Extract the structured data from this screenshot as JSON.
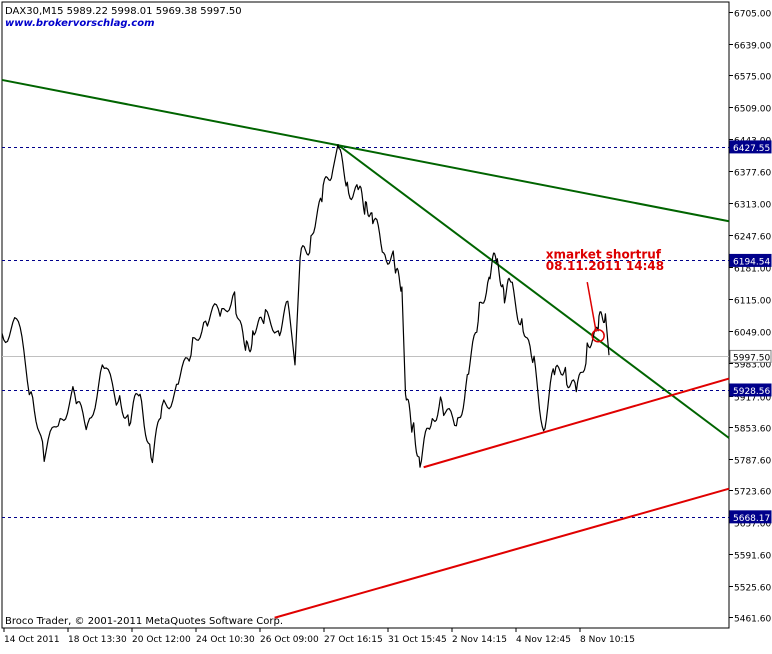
{
  "chart_data": {
    "type": "line",
    "title": "DAX30,M15  5989.22 5998.01 5969.38 5997.50",
    "watermark_link": "www.brokervorschlag.com",
    "footer": "Broco Trader, © 2001-2011 MetaQuotes Software Corp.",
    "annotation": {
      "line1": "xmarket shortruf",
      "line2": "08.11.2011 14:48",
      "color": "#dd0000"
    },
    "y_axis": {
      "side": "right",
      "ylim": [
        5440,
        6725
      ],
      "ticks": [
        6705.0,
        6639.0,
        6575.0,
        6509.0,
        6443.0,
        6377.6,
        6313.0,
        6247.6,
        6181.0,
        6115.0,
        6049.0,
        5983.0,
        5917.0,
        5853.6,
        5787.6,
        5723.6,
        5657.0,
        5591.6,
        5525.6,
        5461.6
      ]
    },
    "x_axis": {
      "tick_labels": [
        "14 Oct 2011",
        "18 Oct 13:30",
        "20 Oct 12:00",
        "24 Oct 10:30",
        "26 Oct 09:00",
        "27 Oct 16:15",
        "31 Oct 15:45",
        "2 Nov 14:15",
        "4 Nov 12:45",
        "8 Nov 10:15"
      ]
    },
    "horizontal_levels": [
      {
        "value": 6427.55,
        "label": "6427.55",
        "style": "dashed",
        "color": "#00008b"
      },
      {
        "value": 6194.54,
        "label": "6194.54",
        "style": "dashed",
        "color": "#00008b"
      },
      {
        "value": 5997.5,
        "label": "5997.50",
        "style": "solid",
        "color": "#c0c0c0"
      },
      {
        "value": 5928.56,
        "label": "5928.56",
        "style": "dashed",
        "color": "#00008b"
      },
      {
        "value": 5668.17,
        "label": "5668.17",
        "style": "dashed",
        "color": "#00008b"
      }
    ],
    "trendlines": [
      {
        "color": "#006400",
        "points": [
          [
            0,
            6565
          ],
          [
            1,
            6275
          ]
        ]
      },
      {
        "color": "#006400",
        "points": [
          [
            0.462,
            6432
          ],
          [
            1,
            5830
          ]
        ]
      },
      {
        "color": "#e00000",
        "points": [
          [
            0.58,
            5770
          ],
          [
            1,
            5952
          ]
        ]
      },
      {
        "color": "#e00000",
        "points": [
          [
            0.375,
            5461
          ],
          [
            1,
            5726
          ]
        ]
      }
    ],
    "series": [
      {
        "color": "#000000",
        "points": [
          [
            0.0,
            6045
          ],
          [
            0.02,
            6075
          ],
          [
            0.04,
            5925
          ],
          [
            0.058,
            5782
          ],
          [
            0.08,
            5870
          ],
          [
            0.1,
            5920
          ],
          [
            0.118,
            5860
          ],
          [
            0.138,
            5980
          ],
          [
            0.16,
            5905
          ],
          [
            0.175,
            5855
          ],
          [
            0.19,
            5920
          ],
          [
            0.205,
            5790
          ],
          [
            0.22,
            5895
          ],
          [
            0.24,
            5940
          ],
          [
            0.26,
            6000
          ],
          [
            0.28,
            6070
          ],
          [
            0.3,
            6080
          ],
          [
            0.32,
            6130
          ],
          [
            0.335,
            6010
          ],
          [
            0.345,
            6050
          ],
          [
            0.36,
            6065
          ],
          [
            0.38,
            6050
          ],
          [
            0.395,
            6090
          ],
          [
            0.403,
            5980
          ],
          [
            0.41,
            6200
          ],
          [
            0.425,
            6245
          ],
          [
            0.44,
            6315
          ],
          [
            0.455,
            6380
          ],
          [
            0.462,
            6432
          ],
          [
            0.475,
            6355
          ],
          [
            0.49,
            6340
          ],
          [
            0.5,
            6315
          ],
          [
            0.51,
            6270
          ],
          [
            0.525,
            6210
          ],
          [
            0.54,
            6185
          ],
          [
            0.55,
            6140
          ],
          [
            0.555,
            5920
          ],
          [
            0.565,
            5855
          ],
          [
            0.575,
            5770
          ],
          [
            0.59,
            5855
          ],
          [
            0.605,
            5905
          ],
          [
            0.625,
            5855
          ],
          [
            0.64,
            5960
          ],
          [
            0.655,
            6070
          ],
          [
            0.67,
            6160
          ],
          [
            0.68,
            6190
          ],
          [
            0.69,
            6135
          ],
          [
            0.7,
            6150
          ],
          [
            0.715,
            6075
          ],
          [
            0.73,
            5985
          ],
          [
            0.745,
            5845
          ],
          [
            0.76,
            5960
          ],
          [
            0.775,
            5975
          ],
          [
            0.79,
            5925
          ],
          [
            0.805,
            6025
          ],
          [
            0.82,
            6050
          ],
          [
            0.83,
            6085
          ],
          [
            0.835,
            6000
          ]
        ]
      }
    ]
  }
}
